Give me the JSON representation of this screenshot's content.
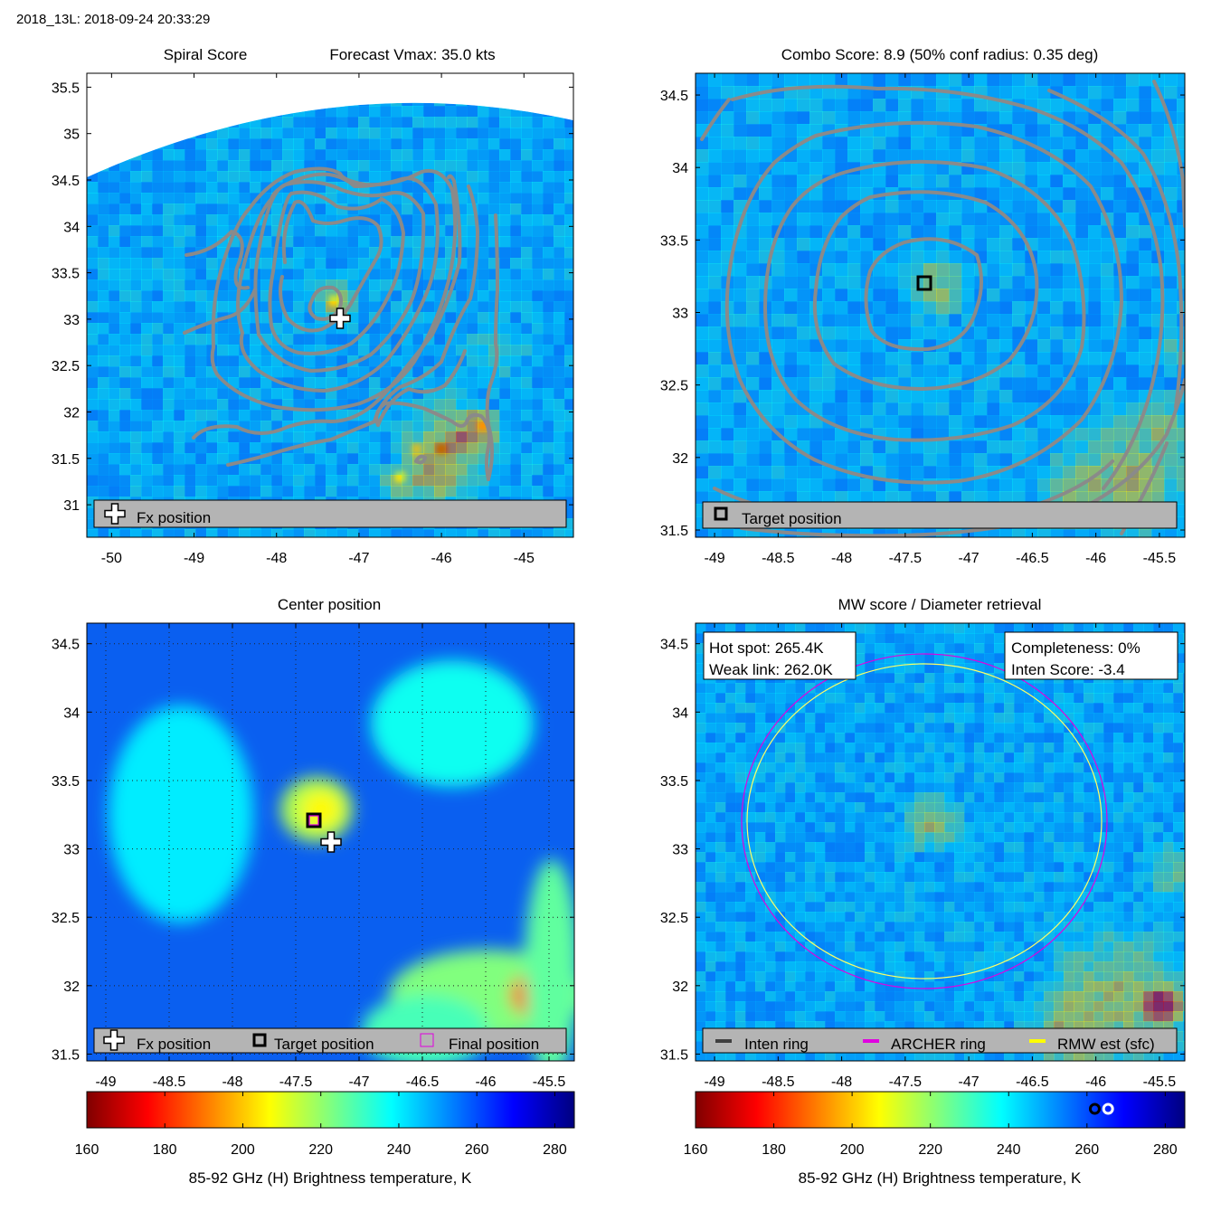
{
  "suptitle": "2018_13L: 2018-09-24 20:33:29",
  "panels": {
    "spiral": {
      "title_left": "Spiral Score",
      "title_right": "Forecast Vmax: 35.0 kts",
      "legend": {
        "fx": "Fx position"
      }
    },
    "combo": {
      "title": "Combo Score: 8.9  (50% conf radius: 0.35 deg)",
      "legend": {
        "target": "Target position"
      }
    },
    "center": {
      "title": "Center position",
      "legend": {
        "fx": "Fx position",
        "target": "Target position",
        "final": "Final position"
      }
    },
    "mw": {
      "title": "MW score / Diameter retrieval",
      "box_left": {
        "hot_spot": "Hot spot: 265.4K",
        "weak_link": "Weak link: 262.0K"
      },
      "box_right": {
        "completeness": "Completeness: 0%",
        "inten_score": "Inten Score: -3.4"
      },
      "legend": {
        "inten": "Inten ring",
        "archer": "ARCHER ring",
        "rmw": "RMW est (sfc)"
      }
    }
  },
  "colorbar": {
    "label": "85-92 GHz (H) Brightness temperature, K",
    "ticks": [
      "160",
      "180",
      "200",
      "220",
      "240",
      "260",
      "280"
    ],
    "range": [
      160,
      285
    ]
  },
  "colors": {
    "background": "#0a5ff0",
    "contour": "#8a8a8a",
    "legend_bg": "#b4b4b4",
    "archer": "#e000e0",
    "rmw": "#ffff00",
    "inten": "#404040"
  },
  "chart_data": [
    {
      "type": "heatmap",
      "title": "Spiral Score",
      "xlim": [
        -50.3,
        -44.4
      ],
      "ylim": [
        30.65,
        35.65
      ],
      "xticks": [
        -50,
        -49,
        -48,
        -47,
        -46,
        -45
      ],
      "yticks": [
        31,
        31.5,
        32,
        32.5,
        33,
        33.5,
        34,
        34.5,
        35,
        35.5
      ],
      "markers": [
        {
          "name": "Fx position",
          "lon": -47.2,
          "lat": 33.0
        }
      ],
      "hot_spots": [
        {
          "lon": -47.3,
          "lat": 33.2,
          "tb": 215
        },
        {
          "lon": -46.0,
          "lat": 31.6,
          "tb": 175
        },
        {
          "lon": -45.5,
          "lat": 31.85,
          "tb": 195
        },
        {
          "lon": -46.3,
          "lat": 31.6,
          "tb": 205
        },
        {
          "lon": -46.5,
          "lat": 31.3,
          "tb": 215
        }
      ]
    },
    {
      "type": "heatmap",
      "title": "Combo Score: 8.9  (50% conf radius: 0.35 deg)",
      "xlim": [
        -49.15,
        -45.3
      ],
      "ylim": [
        31.45,
        34.65
      ],
      "xticks": [
        -49,
        -48.5,
        -48,
        -47.5,
        -47,
        -46.5,
        -46,
        -45.5
      ],
      "yticks": [
        31.5,
        32,
        32.5,
        33,
        33.5,
        34,
        34.5
      ],
      "markers": [
        {
          "name": "Target position",
          "lon": -47.35,
          "lat": 33.16
        }
      ]
    },
    {
      "type": "heatmap",
      "title": "Center position",
      "xlim": [
        -49.15,
        -45.3
      ],
      "ylim": [
        31.45,
        34.65
      ],
      "xticks": [
        -49,
        -48.5,
        -48,
        -47.5,
        -47,
        -46.5,
        -46,
        -45.5
      ],
      "yticks": [
        31.5,
        32,
        32.5,
        33,
        33.5,
        34,
        34.5
      ],
      "markers": [
        {
          "name": "Fx position",
          "lon": -47.23,
          "lat": 33.0
        },
        {
          "name": "Target position",
          "lon": -47.36,
          "lat": 33.16
        },
        {
          "name": "Final position",
          "lon": -47.36,
          "lat": 33.16
        }
      ]
    },
    {
      "type": "heatmap",
      "title": "MW score / Diameter retrieval",
      "xlim": [
        -49.15,
        -45.3
      ],
      "ylim": [
        31.45,
        34.65
      ],
      "xticks": [
        -49,
        -48.5,
        -48,
        -47.5,
        -47,
        -46.5,
        -46,
        -45.5
      ],
      "yticks": [
        31.5,
        32,
        32.5,
        33,
        33.5,
        34,
        34.5
      ],
      "rings": [
        {
          "name": "ARCHER ring",
          "lon": -47.33,
          "lat": 33.16,
          "radius_deg": 1.45
        },
        {
          "name": "RMW est (sfc)",
          "lon": -47.33,
          "lat": 33.16,
          "radius_deg": 1.4
        }
      ],
      "colorbar_markers": [
        262.0,
        265.4
      ]
    }
  ]
}
